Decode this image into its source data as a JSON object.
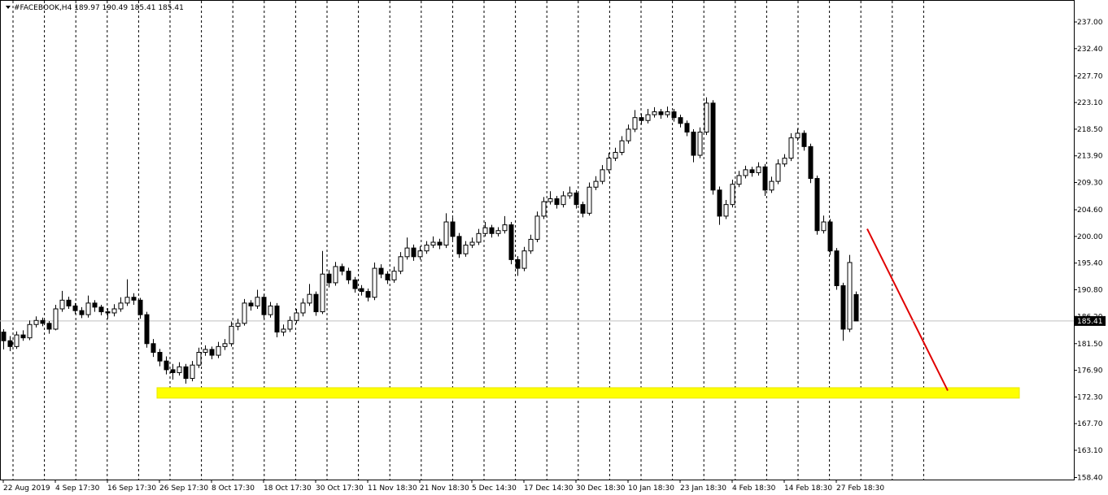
{
  "chart_data": {
    "type": "candlestick",
    "symbol": "#FACEBOOK,H4",
    "categories": [
      "22 Aug 2019",
      null,
      null,
      null,
      null,
      null,
      null,
      null,
      "4 Sep 17:30",
      null,
      null,
      null,
      null,
      null,
      null,
      null,
      "16 Sep 17:30",
      null,
      null,
      null,
      null,
      null,
      null,
      null,
      "26 Sep 17:30",
      null,
      null,
      null,
      null,
      null,
      null,
      null,
      "8 Oct 17:30",
      null,
      null,
      null,
      null,
      null,
      null,
      null,
      "18 Oct 17:30",
      null,
      null,
      null,
      null,
      null,
      null,
      null,
      "30 Oct 17:30",
      null,
      null,
      null,
      null,
      null,
      null,
      null,
      "11 Nov 18:30",
      null,
      null,
      null,
      null,
      null,
      null,
      null,
      "21 Nov 18:30",
      null,
      null,
      null,
      null,
      null,
      null,
      null,
      "5 Dec 14:30",
      null,
      null,
      null,
      null,
      null,
      null,
      null,
      "17 Dec 14:30",
      null,
      null,
      null,
      null,
      null,
      null,
      null,
      "30 Dec 18:30",
      null,
      null,
      null,
      null,
      null,
      null,
      null,
      "10 Jan 18:30",
      null,
      null,
      null,
      null,
      null,
      null,
      null,
      "23 Jan 18:30",
      null,
      null,
      null,
      null,
      null,
      null,
      null,
      "4 Feb 18:30",
      null,
      null,
      null,
      null,
      null,
      null,
      null,
      "14 Feb 18:30",
      null,
      null,
      null,
      null,
      null,
      null,
      null,
      "27 Feb 18:30",
      null,
      null,
      null
    ],
    "ohlc": [
      [
        183.5,
        184.0,
        180.5,
        182.0
      ],
      [
        182.0,
        182.8,
        180.2,
        181.0
      ],
      [
        181.0,
        183.6,
        180.6,
        183.0
      ],
      [
        183.0,
        183.8,
        182.0,
        182.5
      ],
      [
        182.5,
        185.5,
        182.1,
        184.8
      ],
      [
        184.8,
        186.2,
        184.3,
        185.5
      ],
      [
        185.5,
        186.0,
        184.5,
        185.0
      ],
      [
        185.0,
        185.4,
        183.2,
        184.0
      ],
      [
        184.0,
        188.2,
        183.8,
        187.5
      ],
      [
        187.5,
        190.6,
        187.0,
        189.0
      ],
      [
        189.0,
        189.6,
        187.5,
        188.0
      ],
      [
        188.0,
        188.5,
        186.6,
        187.2
      ],
      [
        187.2,
        187.8,
        185.9,
        186.5
      ],
      [
        186.5,
        189.8,
        186.0,
        188.5
      ],
      [
        188.5,
        189.0,
        187.0,
        187.8
      ],
      [
        187.8,
        188.2,
        186.4,
        187.0
      ],
      [
        187.0,
        187.6,
        185.8,
        186.8
      ],
      [
        186.8,
        188.3,
        186.2,
        187.5
      ],
      [
        187.5,
        189.5,
        187.0,
        188.5
      ],
      [
        188.5,
        192.6,
        188.0,
        189.5
      ],
      [
        189.5,
        190.2,
        188.2,
        189.0
      ],
      [
        189.0,
        189.4,
        185.8,
        186.5
      ],
      [
        186.5,
        187.0,
        180.8,
        181.5
      ],
      [
        181.5,
        182.3,
        179.2,
        180.0
      ],
      [
        180.0,
        180.6,
        177.6,
        178.5
      ],
      [
        178.5,
        179.3,
        176.2,
        177.0
      ],
      [
        177.0,
        178.0,
        175.3,
        176.5
      ],
      [
        176.5,
        178.3,
        176.0,
        177.5
      ],
      [
        177.5,
        178.0,
        174.6,
        175.5
      ],
      [
        175.5,
        178.5,
        175.0,
        177.8
      ],
      [
        177.8,
        180.8,
        177.3,
        180.0
      ],
      [
        180.0,
        181.2,
        179.4,
        180.5
      ],
      [
        180.5,
        181.0,
        178.8,
        179.5
      ],
      [
        179.5,
        181.8,
        179.0,
        181.0
      ],
      [
        181.0,
        182.3,
        180.4,
        181.5
      ],
      [
        181.5,
        185.3,
        181.0,
        184.5
      ],
      [
        184.5,
        185.8,
        183.8,
        185.0
      ],
      [
        185.0,
        189.2,
        184.6,
        188.5
      ],
      [
        188.5,
        189.0,
        187.2,
        188.0
      ],
      [
        188.0,
        190.8,
        187.5,
        189.5
      ],
      [
        189.5,
        190.0,
        185.8,
        186.5
      ],
      [
        186.5,
        188.7,
        186.0,
        188.0
      ],
      [
        188.0,
        188.5,
        182.6,
        183.5
      ],
      [
        183.5,
        184.8,
        182.8,
        184.0
      ],
      [
        184.0,
        186.2,
        183.5,
        185.5
      ],
      [
        185.5,
        187.5,
        185.0,
        186.8
      ],
      [
        186.8,
        189.3,
        186.2,
        188.5
      ],
      [
        188.5,
        191.8,
        188.0,
        190.0
      ],
      [
        190.0,
        190.5,
        186.3,
        187.0
      ],
      [
        187.0,
        197.5,
        186.6,
        193.5
      ],
      [
        193.5,
        194.2,
        191.2,
        192.0
      ],
      [
        192.0,
        195.6,
        191.5,
        194.8
      ],
      [
        194.8,
        195.3,
        193.3,
        194.0
      ],
      [
        194.0,
        194.6,
        191.8,
        192.5
      ],
      [
        192.5,
        193.0,
        190.3,
        191.0
      ],
      [
        191.0,
        191.6,
        189.8,
        190.5
      ],
      [
        190.5,
        191.0,
        188.8,
        189.5
      ],
      [
        189.5,
        195.5,
        189.0,
        194.5
      ],
      [
        194.5,
        195.2,
        192.8,
        193.5
      ],
      [
        193.5,
        194.0,
        191.8,
        192.5
      ],
      [
        192.5,
        194.8,
        192.0,
        194.0
      ],
      [
        194.0,
        197.3,
        193.5,
        196.5
      ],
      [
        196.5,
        199.8,
        196.0,
        198.0
      ],
      [
        198.0,
        198.6,
        195.8,
        196.5
      ],
      [
        196.5,
        198.3,
        196.0,
        197.5
      ],
      [
        197.5,
        199.2,
        197.0,
        198.5
      ],
      [
        198.5,
        200.0,
        198.0,
        199.0
      ],
      [
        199.0,
        199.6,
        197.8,
        198.5
      ],
      [
        198.5,
        204.0,
        198.0,
        202.5
      ],
      [
        202.5,
        203.2,
        199.4,
        200.0
      ],
      [
        200.0,
        200.6,
        196.3,
        197.0
      ],
      [
        197.0,
        199.2,
        196.5,
        198.5
      ],
      [
        198.5,
        199.8,
        198.0,
        199.0
      ],
      [
        199.0,
        201.3,
        198.5,
        200.5
      ],
      [
        200.5,
        202.5,
        200.0,
        201.5
      ],
      [
        201.5,
        202.0,
        199.8,
        200.5
      ],
      [
        200.5,
        201.6,
        200.0,
        201.0
      ],
      [
        201.0,
        203.5,
        200.5,
        202.0
      ],
      [
        202.0,
        202.5,
        195.2,
        196.0
      ],
      [
        196.0,
        196.6,
        193.2,
        194.5
      ],
      [
        194.5,
        198.2,
        194.0,
        197.5
      ],
      [
        197.5,
        200.3,
        197.0,
        199.5
      ],
      [
        199.5,
        204.3,
        199.0,
        203.5
      ],
      [
        203.5,
        206.8,
        203.0,
        206.0
      ],
      [
        206.0,
        207.8,
        205.5,
        206.5
      ],
      [
        206.5,
        207.0,
        204.8,
        205.5
      ],
      [
        205.5,
        207.8,
        205.0,
        207.0
      ],
      [
        207.0,
        208.6,
        206.5,
        207.5
      ],
      [
        207.5,
        208.0,
        204.8,
        205.5
      ],
      [
        205.5,
        206.0,
        203.3,
        204.0
      ],
      [
        204.0,
        209.3,
        203.6,
        208.5
      ],
      [
        208.5,
        210.4,
        208.0,
        209.5
      ],
      [
        209.5,
        212.3,
        209.0,
        211.5
      ],
      [
        211.5,
        214.4,
        211.0,
        213.5
      ],
      [
        213.5,
        215.3,
        213.0,
        214.5
      ],
      [
        214.5,
        217.3,
        214.0,
        216.5
      ],
      [
        216.5,
        219.3,
        216.0,
        218.5
      ],
      [
        218.5,
        221.8,
        218.0,
        220.5
      ],
      [
        220.5,
        221.2,
        219.3,
        220.0
      ],
      [
        220.0,
        222.0,
        219.5,
        221.0
      ],
      [
        221.0,
        222.3,
        220.5,
        221.5
      ],
      [
        221.5,
        222.0,
        220.3,
        221.0
      ],
      [
        221.0,
        222.4,
        220.5,
        221.5
      ],
      [
        221.5,
        222.0,
        219.8,
        220.5
      ],
      [
        220.5,
        221.0,
        218.8,
        219.5
      ],
      [
        219.5,
        220.0,
        217.3,
        218.0
      ],
      [
        218.0,
        218.5,
        212.8,
        214.0
      ],
      [
        214.0,
        218.8,
        213.5,
        218.0
      ],
      [
        218.0,
        224.0,
        217.5,
        223.0
      ],
      [
        223.0,
        223.5,
        207.2,
        208.0
      ],
      [
        208.0,
        208.6,
        202.0,
        203.5
      ],
      [
        203.5,
        206.3,
        203.0,
        205.5
      ],
      [
        205.5,
        209.8,
        205.0,
        209.0
      ],
      [
        209.0,
        211.3,
        208.5,
        210.5
      ],
      [
        210.5,
        212.2,
        210.0,
        211.5
      ],
      [
        211.5,
        212.0,
        210.3,
        211.0
      ],
      [
        211.0,
        212.8,
        210.5,
        212.0
      ],
      [
        212.0,
        212.5,
        207.0,
        208.0
      ],
      [
        208.0,
        210.3,
        207.5,
        209.5
      ],
      [
        209.5,
        213.3,
        209.0,
        212.5
      ],
      [
        212.5,
        214.2,
        212.0,
        213.5
      ],
      [
        213.5,
        217.8,
        213.0,
        217.0
      ],
      [
        217.0,
        218.6,
        216.5,
        217.8
      ],
      [
        217.8,
        218.3,
        214.8,
        215.5
      ],
      [
        215.5,
        216.0,
        209.2,
        210.0
      ],
      [
        210.0,
        210.5,
        200.3,
        201.0
      ],
      [
        201.0,
        203.6,
        200.5,
        202.5
      ],
      [
        202.5,
        203.0,
        196.8,
        197.5
      ],
      [
        197.5,
        198.0,
        190.8,
        191.5
      ],
      [
        191.5,
        192.0,
        182.0,
        184.0
      ],
      [
        184.0,
        196.8,
        183.5,
        195.5
      ],
      [
        189.97,
        190.49,
        185.41,
        185.41
      ]
    ],
    "ylim": [
      158.05,
      240.79
    ],
    "yticks": [
      {
        "value": 237,
        "label": "237.00"
      },
      {
        "value": 232.4,
        "label": "232.40"
      },
      {
        "value": 227.7,
        "label": "227.70"
      },
      {
        "value": 223.1,
        "label": "223.10"
      },
      {
        "value": 218.5,
        "label": "218.50"
      },
      {
        "value": 213.9,
        "label": "213.90"
      },
      {
        "value": 209.3,
        "label": "209.30"
      },
      {
        "value": 204.6,
        "label": "204.60"
      },
      {
        "value": 200,
        "label": "200.00"
      },
      {
        "value": 195.4,
        "label": "195.40"
      },
      {
        "value": 190.8,
        "label": "190.80"
      },
      {
        "value": 186.2,
        "label": "186.20"
      },
      {
        "value": 181.5,
        "label": "181.50"
      },
      {
        "value": 176.9,
        "label": "176.90"
      },
      {
        "value": 172.3,
        "label": "172.30"
      },
      {
        "value": 167.7,
        "label": "167.70"
      },
      {
        "value": 163.1,
        "label": "163.10"
      },
      {
        "value": 158.4,
        "label": "158.40"
      }
    ],
    "zone": [
      172.1,
      173.9
    ],
    "trend_line": [
      201.3,
      173.4
    ],
    "colors": {
      "up": "#ffffff",
      "down": "#000000",
      "zone": "#ffff00",
      "trend": "#e00000"
    }
  }
}
